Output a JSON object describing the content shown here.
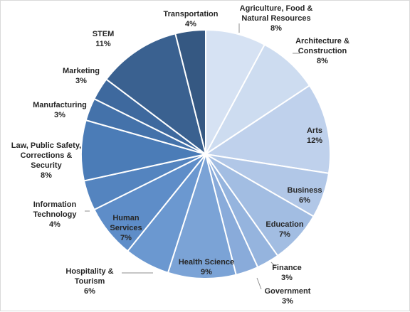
{
  "chart_data": {
    "type": "pie",
    "title": "",
    "slices": [
      {
        "name": "Agriculture, Food & Natural Resources",
        "value": 8,
        "label_lines": [
          "Agriculture, Food &",
          "Natural Resources"
        ],
        "pct": "8%",
        "color": "#d6e2f3"
      },
      {
        "name": "Architecture & Construction",
        "value": 8,
        "label_lines": [
          "Architecture &",
          "Construction"
        ],
        "pct": "8%",
        "color": "#cddcf0"
      },
      {
        "name": "Arts",
        "value": 12,
        "label_lines": [
          "Arts"
        ],
        "pct": "12%",
        "color": "#bfd1ec"
      },
      {
        "name": "Business",
        "value": 6,
        "label_lines": [
          "Business"
        ],
        "pct": "6%",
        "color": "#b1c7e7"
      },
      {
        "name": "Education",
        "value": 7,
        "label_lines": [
          "Education"
        ],
        "pct": "7%",
        "color": "#a2bde2"
      },
      {
        "name": "Finance",
        "value": 3,
        "label_lines": [
          "Finance"
        ],
        "pct": "3%",
        "color": "#95b4de"
      },
      {
        "name": "Government",
        "value": 3,
        "label_lines": [
          "Government"
        ],
        "pct": "3%",
        "color": "#89abda"
      },
      {
        "name": "Health Science",
        "value": 9,
        "label_lines": [
          "Health Science"
        ],
        "pct": "9%",
        "color": "#7ba3d6"
      },
      {
        "name": "Hospitality & Tourism",
        "value": 6,
        "label_lines": [
          "Hospitality &",
          "Tourism"
        ],
        "pct": "6%",
        "color": "#6b98d0"
      },
      {
        "name": "Human Services",
        "value": 7,
        "label_lines": [
          "Human",
          "Services"
        ],
        "pct": "7%",
        "color": "#5e8dc8"
      },
      {
        "name": "Information Technology",
        "value": 4,
        "label_lines": [
          "Information",
          "Technology"
        ],
        "pct": "4%",
        "color": "#5484bf"
      },
      {
        "name": "Law, Public Safety, Corrections & Security",
        "value": 8,
        "label_lines": [
          "Law, Public Safety,",
          "Corrections &",
          "Security"
        ],
        "pct": "8%",
        "color": "#4b7cb7"
      },
      {
        "name": "Manufacturing",
        "value": 3,
        "label_lines": [
          "Manufacturing"
        ],
        "pct": "3%",
        "color": "#4472aa"
      },
      {
        "name": "Marketing",
        "value": 3,
        "label_lines": [
          "Marketing"
        ],
        "pct": "3%",
        "color": "#3e699e"
      },
      {
        "name": "STEM",
        "value": 11,
        "label_lines": [
          "STEM"
        ],
        "pct": "11%",
        "color": "#3a6190"
      },
      {
        "name": "Transportation",
        "value": 4,
        "label_lines": [
          "Transportation"
        ],
        "pct": "4%",
        "color": "#355882"
      }
    ],
    "slice_border_color": "#ffffff",
    "leader_color": "#8c8c8c",
    "legend": "none",
    "label_style": "category name and percentage"
  }
}
